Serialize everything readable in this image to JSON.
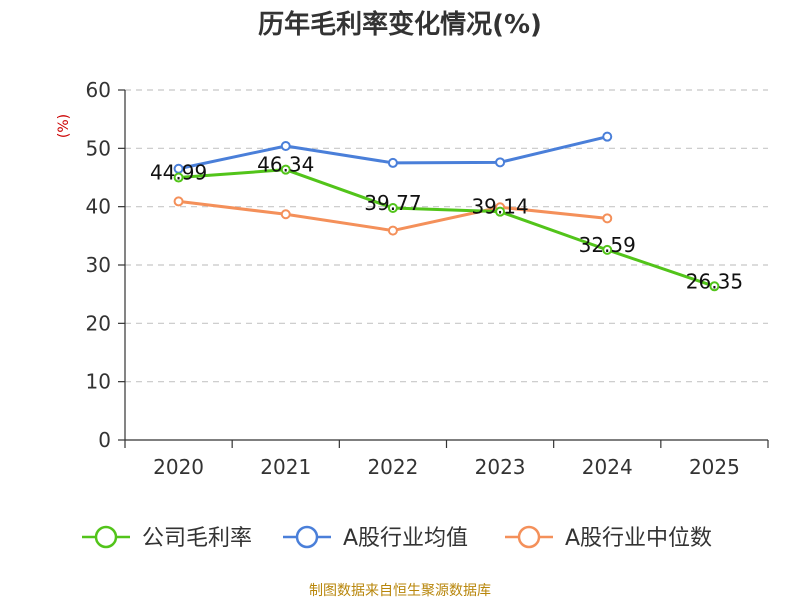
{
  "chart_data": {
    "type": "line",
    "title": "历年毛利率变化情况(%)",
    "ylabel": "(%)",
    "xlabel": "",
    "ylim": [
      0,
      60
    ],
    "yticks": [
      0,
      10,
      20,
      30,
      40,
      50,
      60
    ],
    "grid": true,
    "legend_position": "bottom",
    "categories": [
      "2020",
      "2021",
      "2022",
      "2023",
      "2024",
      "2025"
    ],
    "series": [
      {
        "name": "公司毛利率",
        "color": "#52c41a",
        "values": [
          44.99,
          46.34,
          39.77,
          39.14,
          32.59,
          26.35
        ],
        "data_labels": [
          "44.99",
          "46.34",
          "39.77",
          "39.14",
          "32.59",
          "26.35"
        ]
      },
      {
        "name": "A股行业均值",
        "color": "#4a7fd9",
        "values": [
          46.5,
          50.4,
          47.5,
          47.6,
          52.0,
          null
        ]
      },
      {
        "name": "A股行业中位数",
        "color": "#f4905a",
        "values": [
          40.9,
          38.7,
          35.9,
          39.9,
          38.0,
          null
        ]
      }
    ]
  },
  "footer": "制图数据来自恒生聚源数据库"
}
